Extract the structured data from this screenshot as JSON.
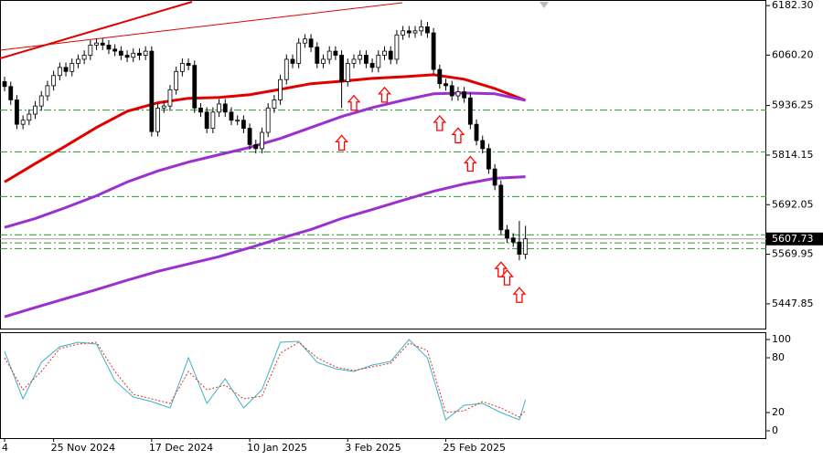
{
  "chart_data": {
    "type": "candlestick",
    "xlim": [
      -0.75,
      124.3
    ],
    "ylim": [
      5387,
      6196
    ],
    "yticks": [
      {
        "value": 6182.3,
        "label": "6182.30"
      },
      {
        "value": 6060.2,
        "label": "6060.20"
      },
      {
        "value": 5936.25,
        "label": "5936.25"
      },
      {
        "value": 5814.15,
        "label": "5814.15"
      },
      {
        "value": 5692.05,
        "label": "5692.05"
      },
      {
        "value": 5569.95,
        "label": "5569.95"
      },
      {
        "value": 5447.85,
        "label": "5447.85"
      }
    ],
    "xticks": [
      {
        "value": 0,
        "label": "4"
      },
      {
        "value": 8,
        "label": "25 Nov 2024"
      },
      {
        "value": 24,
        "label": "17 Dec 2024"
      },
      {
        "value": 40,
        "label": "10 Jan 2025"
      },
      {
        "value": 56,
        "label": "3 Feb 2025"
      },
      {
        "value": 72,
        "label": "25 Feb 2025"
      }
    ],
    "last_price": 5607.73,
    "candles": {
      "open": [
        5995,
        5983,
        5950,
        5890,
        5900,
        5915,
        5935,
        5960,
        5985,
        6010,
        6030,
        6020,
        6040,
        6050,
        6060,
        6085,
        6090,
        6085,
        6075,
        6070,
        6060,
        6055,
        6065,
        6060,
        6070,
        5872,
        5930,
        5935,
        5975,
        6020,
        6040,
        6035,
        5930,
        5920,
        5880,
        5920,
        5940,
        5920,
        5900,
        5900,
        5880,
        5840,
        5830,
        5870,
        5930,
        5950,
        6000,
        6050,
        6040,
        6090,
        6100,
        6080,
        6040,
        6050,
        6070,
        6060,
        5995,
        6040,
        6050,
        6060,
        6040,
        6030,
        6060,
        6070,
        6050,
        6110,
        6120,
        6115,
        6120,
        6130,
        6115,
        6025,
        5990,
        5985,
        5960,
        5970,
        5955,
        5890,
        5850,
        5830,
        5780,
        5740,
        5630,
        5610,
        5600,
        5570
      ],
      "high": [
        6007,
        5995,
        5962,
        5912,
        5927,
        5947,
        5972,
        5997,
        6022,
        6042,
        6042,
        6052,
        6062,
        6072,
        6097,
        6102,
        6102,
        6097,
        6087,
        6082,
        6072,
        6077,
        6077,
        6082,
        6082,
        5942,
        5947,
        5987,
        6032,
        6052,
        6052,
        6047,
        5942,
        5932,
        5932,
        5952,
        5952,
        5932,
        5912,
        5912,
        5892,
        5852,
        5882,
        5942,
        5962,
        6012,
        6062,
        6062,
        6102,
        6112,
        6112,
        6092,
        6062,
        6082,
        6082,
        6072,
        6052,
        6062,
        6072,
        6072,
        6052,
        6072,
        6082,
        6082,
        6122,
        6132,
        6132,
        6132,
        6147,
        6142,
        6127,
        6037,
        6002,
        5997,
        5982,
        5982,
        5967,
        5902,
        5862,
        5842,
        5792,
        5752,
        5642,
        5622,
        5652,
        5640
      ],
      "low": [
        5971,
        5938,
        5878,
        5878,
        5888,
        5903,
        5923,
        5948,
        5973,
        5998,
        6008,
        6008,
        6028,
        6038,
        6048,
        6073,
        6073,
        6063,
        6058,
        6048,
        6043,
        6043,
        6048,
        6048,
        5860,
        5860,
        5918,
        5923,
        5963,
        6008,
        6023,
        5918,
        5908,
        5868,
        5868,
        5908,
        5908,
        5888,
        5888,
        5868,
        5828,
        5818,
        5818,
        5858,
        5918,
        5938,
        5988,
        6028,
        6028,
        6078,
        6068,
        6028,
        6028,
        6038,
        6048,
        5930,
        5983,
        6028,
        6038,
        6028,
        6018,
        6018,
        6048,
        6038,
        6038,
        6098,
        6103,
        6103,
        6108,
        6103,
        6013,
        5978,
        5973,
        5948,
        5948,
        5943,
        5878,
        5838,
        5818,
        5768,
        5728,
        5618,
        5598,
        5588,
        5555,
        5558
      ],
      "close": [
        5983,
        5950,
        5890,
        5900,
        5915,
        5935,
        5960,
        5985,
        6010,
        6030,
        6020,
        6040,
        6050,
        6060,
        6085,
        6090,
        6085,
        6075,
        6070,
        6060,
        6055,
        6065,
        6060,
        6070,
        5872,
        5930,
        5935,
        5975,
        6020,
        6040,
        6035,
        5930,
        5920,
        5880,
        5920,
        5940,
        5920,
        5900,
        5900,
        5880,
        5840,
        5830,
        5870,
        5930,
        5950,
        6000,
        6050,
        6040,
        6090,
        6100,
        6080,
        6040,
        6050,
        6070,
        6060,
        5995,
        6040,
        6050,
        6060,
        6040,
        6030,
        6060,
        6070,
        6050,
        6110,
        6120,
        6115,
        6120,
        6130,
        6115,
        6025,
        5990,
        5985,
        5960,
        5970,
        5955,
        5890,
        5850,
        5830,
        5780,
        5740,
        5630,
        5610,
        5600,
        5570,
        5608
      ],
      "up_color": "#ffffff",
      "down_color": "#000000"
    },
    "series": [
      {
        "color": "#e00000",
        "x": [
          0,
          5,
          10,
          15,
          20,
          25,
          30,
          35,
          40,
          45,
          50,
          55,
          60,
          65,
          70,
          75,
          80,
          85
        ],
        "values": [
          5748,
          5793,
          5837,
          5882,
          5922,
          5943,
          5954,
          5956,
          5963,
          5976,
          5990,
          5996,
          6003,
          6007,
          6012,
          6001,
          5978,
          5949
        ]
      },
      {
        "color": "#9b30d0",
        "x": [
          0,
          5,
          10,
          15,
          20,
          25,
          30,
          35,
          40,
          45,
          50,
          55,
          60,
          65,
          70,
          75,
          80,
          85
        ],
        "values": [
          5636,
          5658,
          5685,
          5714,
          5748,
          5775,
          5797,
          5815,
          5833,
          5855,
          5882,
          5909,
          5931,
          5949,
          5965,
          5967,
          5965,
          5949
        ]
      },
      {
        "color": "#9b30d0",
        "x": [
          0,
          5,
          10,
          15,
          20,
          25,
          30,
          35,
          40,
          45,
          50,
          55,
          60,
          65,
          70,
          75,
          80,
          85
        ],
        "values": [
          5416,
          5439,
          5461,
          5483,
          5506,
          5528,
          5546,
          5564,
          5586,
          5609,
          5631,
          5658,
          5680,
          5703,
          5725,
          5743,
          5757,
          5761
        ]
      }
    ],
    "levels": {
      "color": "#2a9a2a",
      "values": [
        5925,
        5822,
        5712,
        5618,
        5598,
        5584
      ]
    },
    "up_arrows": {
      "color": "#ff0000",
      "indices": [
        55,
        57,
        62,
        71,
        74,
        76,
        81,
        82,
        84
      ]
    },
    "stochastic": {
      "ylim": [
        -8,
        107
      ],
      "yticks": [
        100,
        80,
        20,
        0
      ],
      "x": [
        0,
        3,
        6,
        9,
        12,
        15,
        18,
        21,
        24,
        27,
        30,
        33,
        36,
        39,
        42,
        45,
        48,
        51,
        54,
        57,
        60,
        63,
        66,
        69,
        72,
        75,
        78,
        81,
        84,
        85
      ],
      "main": {
        "color": "#3cb0c8",
        "values": [
          87,
          35,
          75,
          92,
          97,
          95,
          55,
          37,
          32,
          25,
          80,
          30,
          57,
          25,
          45,
          97,
          98,
          75,
          68,
          65,
          72,
          76,
          100,
          80,
          12,
          28,
          30,
          20,
          12,
          34
        ]
      },
      "signal": {
        "color": "#e03020",
        "values": [
          80,
          45,
          65,
          90,
          95,
          97,
          65,
          40,
          35,
          30,
          65,
          45,
          50,
          35,
          38,
          85,
          97,
          80,
          70,
          66,
          70,
          74,
          96,
          88,
          20,
          22,
          32,
          25,
          15,
          22
        ]
      }
    }
  }
}
